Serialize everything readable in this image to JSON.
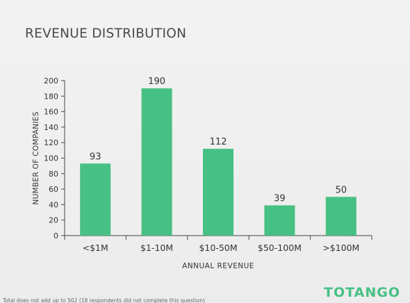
{
  "page": {
    "title": "REVENUE DISTRIBUTION",
    "brand": "TOTANGO",
    "footnote": "Total does not add up to 502 (18 respondents did not complete this question)",
    "colors": {
      "bar": "#47c083",
      "axis": "#444444",
      "brand": "#47c083"
    }
  },
  "chart_data": {
    "type": "bar",
    "title": "REVENUE DISTRIBUTION",
    "xlabel": "ANNUAL REVENUE",
    "ylabel": "NUMBER OF COMPANIES",
    "categories": [
      "<$1M",
      "$1-10M",
      "$10-50M",
      "$50-100M",
      ">$100M"
    ],
    "values": [
      93,
      190,
      112,
      39,
      50
    ],
    "ylim": [
      0,
      200
    ],
    "yticks": [
      0,
      20,
      40,
      60,
      80,
      100,
      120,
      140,
      160,
      180,
      200
    ],
    "grid": false,
    "data_labels": true
  }
}
